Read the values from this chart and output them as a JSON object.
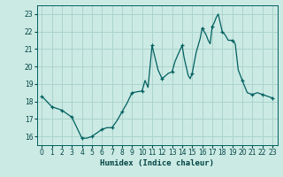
{
  "title": "",
  "xlabel": "Humidex (Indice chaleur)",
  "ylabel": "",
  "background_color": "#cceae4",
  "grid_color": "#aad4cc",
  "line_color": "#006060",
  "marker_color": "#006060",
  "xlim": [
    -0.5,
    23.5
  ],
  "ylim": [
    15.5,
    23.5
  ],
  "yticks": [
    16,
    17,
    18,
    19,
    20,
    21,
    22,
    23
  ],
  "xticks": [
    0,
    1,
    2,
    3,
    4,
    5,
    6,
    7,
    8,
    9,
    10,
    11,
    12,
    13,
    14,
    15,
    16,
    17,
    18,
    19,
    20,
    21,
    22,
    23
  ],
  "x": [
    0,
    0.5,
    1,
    1.5,
    2,
    2.5,
    3,
    3.5,
    4,
    4.5,
    5,
    5.5,
    6,
    6.5,
    7,
    7.5,
    8,
    8.5,
    9,
    9.5,
    10,
    10.3,
    10.6,
    11,
    11.3,
    11.6,
    12,
    12.3,
    12.6,
    13,
    13.3,
    13.6,
    14,
    14.2,
    14.4,
    14.6,
    14.8,
    15,
    15.2,
    15.4,
    15.6,
    15.8,
    16,
    16.2,
    16.4,
    16.6,
    16.8,
    17,
    17.2,
    17.4,
    17.6,
    17.8,
    18,
    18.3,
    18.6,
    19,
    19.3,
    19.6,
    20,
    20.5,
    21,
    21.5,
    22,
    22.5,
    23
  ],
  "y": [
    18.3,
    18.0,
    17.7,
    17.6,
    17.5,
    17.3,
    17.1,
    16.5,
    15.9,
    15.9,
    16.0,
    16.2,
    16.4,
    16.5,
    16.5,
    16.9,
    17.4,
    17.9,
    18.5,
    18.55,
    18.6,
    19.2,
    18.8,
    21.2,
    20.5,
    19.8,
    19.3,
    19.45,
    19.6,
    19.7,
    20.3,
    20.7,
    21.2,
    20.5,
    20.0,
    19.5,
    19.3,
    19.6,
    20.2,
    20.8,
    21.2,
    21.6,
    22.2,
    22.0,
    21.8,
    21.5,
    21.3,
    22.3,
    22.5,
    22.8,
    23.0,
    22.5,
    22.0,
    21.8,
    21.5,
    21.5,
    21.3,
    19.8,
    19.2,
    18.5,
    18.4,
    18.5,
    18.4,
    18.3,
    18.2
  ],
  "marker_x": [
    0,
    1,
    2,
    3,
    4,
    5,
    6,
    7,
    8,
    9,
    10,
    11,
    12,
    13,
    14,
    15,
    16,
    17,
    18,
    19,
    20,
    21,
    22,
    23
  ],
  "marker_y": [
    18.3,
    17.7,
    17.5,
    17.1,
    15.9,
    16.0,
    16.4,
    16.5,
    17.4,
    18.5,
    18.6,
    21.2,
    19.3,
    19.7,
    21.2,
    19.6,
    22.2,
    22.3,
    22.0,
    21.5,
    19.2,
    18.4,
    18.4,
    18.2
  ]
}
